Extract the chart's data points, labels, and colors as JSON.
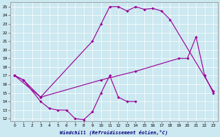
{
  "bg_color": "#cce8f0",
  "line_color": "#990099",
  "xlabel": "Windchill (Refroidissement éolien,°C)",
  "xlim_min": -0.5,
  "xlim_max": 23.5,
  "ylim_min": 11.7,
  "ylim_max": 25.5,
  "xticks": [
    0,
    1,
    2,
    3,
    4,
    5,
    6,
    7,
    8,
    9,
    10,
    11,
    12,
    13,
    14,
    15,
    16,
    17,
    18,
    19,
    20,
    21,
    22,
    23
  ],
  "yticks": [
    12,
    13,
    14,
    15,
    16,
    17,
    18,
    19,
    20,
    21,
    22,
    23,
    24,
    25
  ],
  "curve1_x": [
    0,
    1,
    3,
    9,
    10,
    11,
    12,
    13,
    14,
    15,
    16,
    17,
    18,
    23
  ],
  "curve1_y": [
    17.0,
    16.5,
    14.5,
    21.0,
    23.0,
    25.0,
    25.0,
    24.5,
    25.0,
    24.7,
    24.8,
    24.5,
    23.5,
    15.2
  ],
  "curve2_x": [
    0,
    3,
    10,
    14,
    19,
    20,
    21,
    22,
    23
  ],
  "curve2_y": [
    17.0,
    14.5,
    16.5,
    17.5,
    19.0,
    19.0,
    21.5,
    17.0,
    15.0
  ],
  "curve3_x": [
    0,
    1,
    3,
    4,
    5,
    6,
    7,
    8,
    9,
    10,
    11,
    12,
    13,
    14
  ],
  "curve3_y": [
    17.0,
    16.5,
    14.0,
    13.2,
    13.0,
    13.0,
    12.0,
    11.9,
    12.8,
    15.0,
    17.0,
    14.5,
    14.0,
    14.0
  ]
}
